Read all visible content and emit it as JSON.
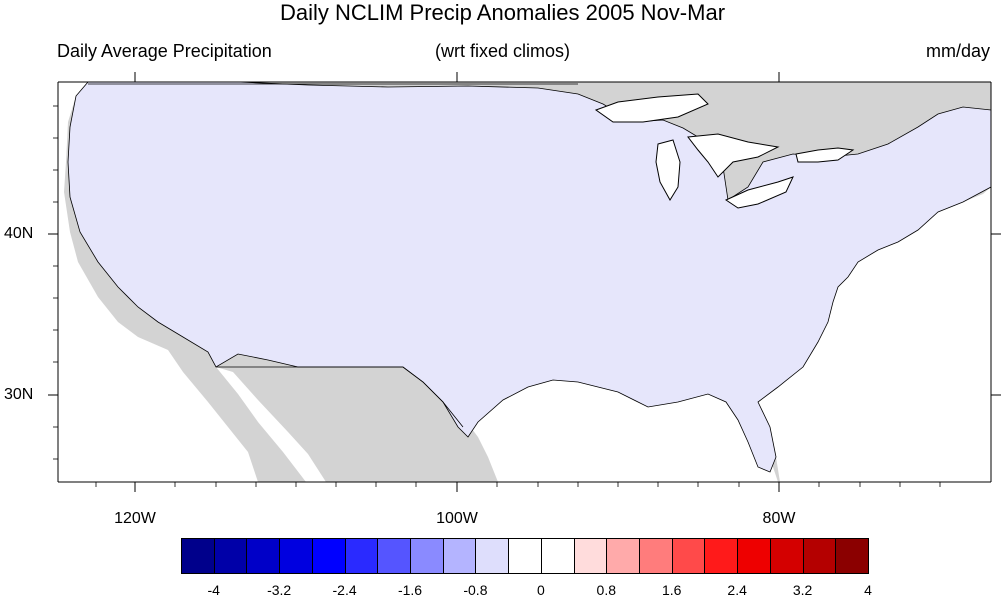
{
  "map": {
    "title": "Daily NCLIM Precip Anomalies 2005 Nov-Mar",
    "subtitle_left": "Daily Average Precipitation",
    "subtitle_center": "(wrt fixed climos)",
    "subtitle_right": "mm/day",
    "lat_labels": [
      "40N",
      "30N"
    ],
    "lon_labels": [
      "120W",
      "100W",
      "80W"
    ],
    "colorbar": {
      "colors": [
        "#00008b",
        "#0000a8",
        "#0000c8",
        "#0000e0",
        "#0000ff",
        "#2a2aff",
        "#5555ff",
        "#8a8aff",
        "#b4b4ff",
        "#dedefc",
        "#ffffff",
        "#ffffff",
        "#ffdcdc",
        "#ffaaaa",
        "#ff7c7c",
        "#ff4a4a",
        "#ff1a1a",
        "#ee0000",
        "#d40000",
        "#b40000",
        "#8b0000"
      ],
      "tick_labels": [
        "-4",
        "-3.2",
        "-2.4",
        "-1.6",
        "-0.8",
        "0",
        "0.8",
        "1.6",
        "2.4",
        "3.2",
        "4"
      ]
    },
    "colors": {
      "land_gray": "#d3d3d3",
      "water": "#ffffff",
      "border": "#000000"
    }
  }
}
